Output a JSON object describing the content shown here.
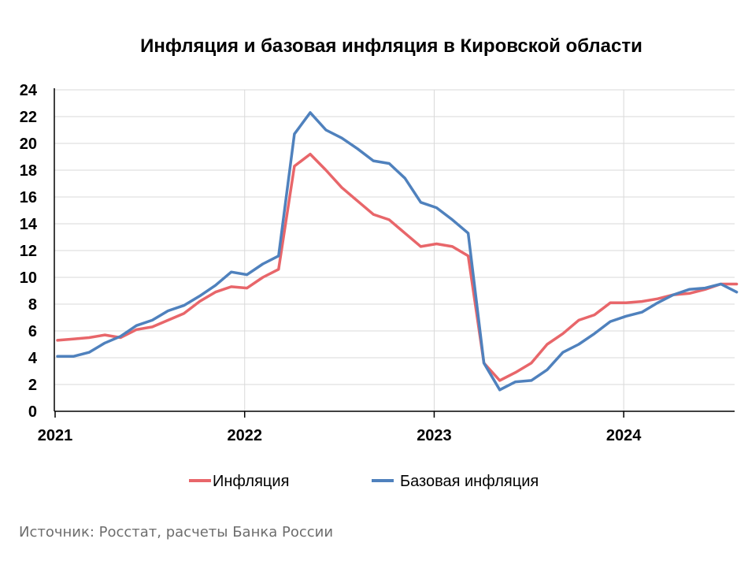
{
  "chart_data": {
    "type": "line",
    "title": "Инфляция и базовая инфляция в Кировской области",
    "source": "Источник: Росстат, расчеты Банка России",
    "xlabel": "",
    "ylabel": "",
    "x_start": "2021-01",
    "x_tick_labels": [
      "2021",
      "2022",
      "2023",
      "2024"
    ],
    "y_ticks": [
      0,
      2,
      4,
      6,
      8,
      10,
      12,
      14,
      16,
      18,
      20,
      22,
      24
    ],
    "ylim": [
      0,
      24
    ],
    "grid": true,
    "legend_position": "bottom",
    "series": [
      {
        "name": "Инфляция",
        "color": "#e8666a",
        "values": [
          5.3,
          5.4,
          5.5,
          5.7,
          5.5,
          6.1,
          6.3,
          6.8,
          7.3,
          8.2,
          8.9,
          9.3,
          9.2,
          10.0,
          10.6,
          18.3,
          19.2,
          18.0,
          16.7,
          15.7,
          14.7,
          14.3,
          13.3,
          12.3,
          12.5,
          12.3,
          11.6,
          3.6,
          2.3,
          2.9,
          3.6,
          5.0,
          5.8,
          6.8,
          7.2,
          8.1,
          8.1,
          8.2,
          8.4,
          8.7,
          8.8,
          9.1,
          9.5,
          9.5
        ]
      },
      {
        "name": "Базовая инфляция",
        "color": "#4f81bd",
        "values": [
          4.1,
          4.1,
          4.4,
          5.1,
          5.6,
          6.4,
          6.8,
          7.5,
          7.9,
          8.6,
          9.4,
          10.4,
          10.2,
          11.0,
          11.6,
          20.7,
          22.3,
          21.0,
          20.4,
          19.6,
          18.7,
          18.5,
          17.4,
          15.6,
          15.2,
          14.3,
          13.3,
          3.6,
          1.6,
          2.2,
          2.3,
          3.1,
          4.4,
          5.0,
          5.8,
          6.7,
          7.1,
          7.4,
          8.1,
          8.7,
          9.1,
          9.2,
          9.5,
          8.9
        ]
      }
    ]
  }
}
